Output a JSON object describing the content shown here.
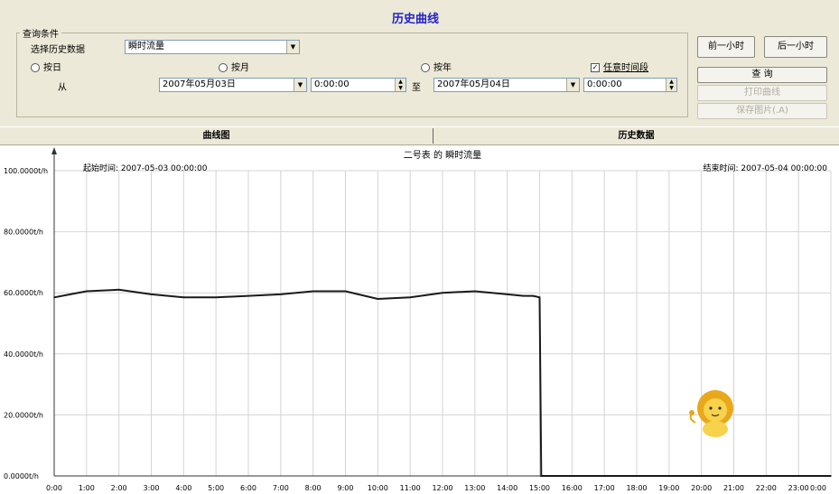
{
  "app": {
    "title": "历史曲线"
  },
  "filter": {
    "group_label": "查询条件",
    "type_label": "选择历史数据",
    "type_value": "瞬时流量",
    "radio_day": "按日",
    "radio_month": "按月",
    "radio_year": "按年",
    "custom_label": "任意时间段",
    "from_label": "从",
    "start_date": "2007年05月03日",
    "start_time": "0:00:00",
    "to_label": "至",
    "end_date": "2007年05月04日",
    "end_time": "0:00:00"
  },
  "buttons": {
    "prev_hour": "前一小时",
    "next_hour": "后一小时",
    "query": "查 询",
    "print": "打印曲线",
    "save": "保存图片(.A)"
  },
  "tabs": {
    "curve": "曲线图",
    "data": "历史数据"
  },
  "chart_data": {
    "type": "line",
    "title": "二号表 的 瞬时流量",
    "start_label": "起始时间: 2007-05-03 00:00:00",
    "end_label": "结束时间: 2007-05-04 00:00:00",
    "y_ticks": [
      "100.0000t/h",
      "80.0000t/h",
      "60.0000t/h",
      "40.0000t/h",
      "20.0000t/h",
      "0.0000t/h"
    ],
    "x_ticks": [
      "0:00",
      "1:00",
      "2:00",
      "3:00",
      "4:00",
      "5:00",
      "6:00",
      "7:00",
      "8:00",
      "9:00",
      "10:00",
      "11:00",
      "12:00",
      "13:00",
      "14:00",
      "15:00",
      "16:00",
      "17:00",
      "18:00",
      "19:00",
      "20:00",
      "21:00",
      "22:00",
      "23:00",
      "0:00"
    ],
    "ylim": [
      0,
      100
    ],
    "xlim": [
      0,
      24
    ],
    "grid": true,
    "series": [
      {
        "x": [
          0,
          0.5,
          1,
          2,
          3,
          4,
          5,
          6,
          7,
          8,
          9,
          10,
          11,
          12,
          13,
          14,
          14.5,
          14.8,
          15,
          15.05,
          16,
          17,
          18,
          19,
          20,
          21,
          22,
          23,
          24
        ],
        "values": [
          58.5,
          59.5,
          60.5,
          61,
          59.5,
          58.5,
          58.5,
          59,
          59.5,
          60.5,
          60.5,
          58,
          58.5,
          60,
          60.5,
          59.5,
          59,
          59,
          58.5,
          0,
          0,
          0,
          0,
          0,
          0,
          0,
          0,
          0,
          0
        ]
      }
    ]
  },
  "colors": {
    "line": "#1a1a1a",
    "grid": "#d4d4d4",
    "title": "#2222cc",
    "panel": "#ece9d8"
  }
}
